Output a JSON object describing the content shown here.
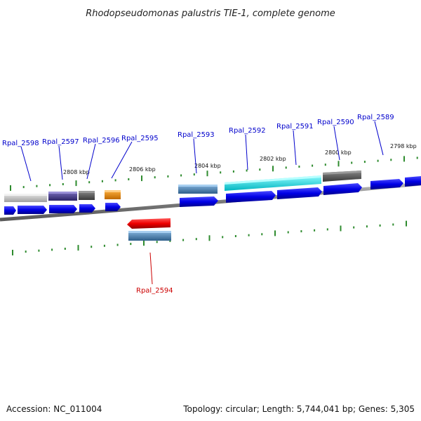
{
  "title": "Rhodopseudomonas palustris TIE-1, complete genome",
  "footer": {
    "accession": "Accession: NC_011004",
    "topology": "Topology: circular; Length: 5,744,041 bp; Genes: 5,305"
  },
  "kbp_labels": [
    "2808 kbp",
    "2806 kbp",
    "2804 kbp",
    "2802 kbp",
    "2800 kbp",
    "2798 kbp"
  ],
  "gene_labels": [
    "Rpal_2598",
    "Rpal_2597",
    "Rpal_2596",
    "Rpal_2595",
    "Rpal_2593",
    "Rpal_2592",
    "Rpal_2591",
    "Rpal_2590",
    "Rpal_2589",
    "Rpal_2594"
  ],
  "colors": {
    "backbone": "#808080",
    "tick": "#2e8b2e",
    "gene_arrow": "#0000e6",
    "reverse_gene": "#ee0000",
    "label_forward": "#0000cc",
    "label_reverse": "#cc0000",
    "feature_gray": "#c8c8c8",
    "feature_purple": "#4b3f8f",
    "feature_dark_gray": "#5a5a5a",
    "feature_orange": "#f08c00",
    "feature_steel_blue": "#4682b4",
    "feature_cyan": "#00e5ee"
  }
}
